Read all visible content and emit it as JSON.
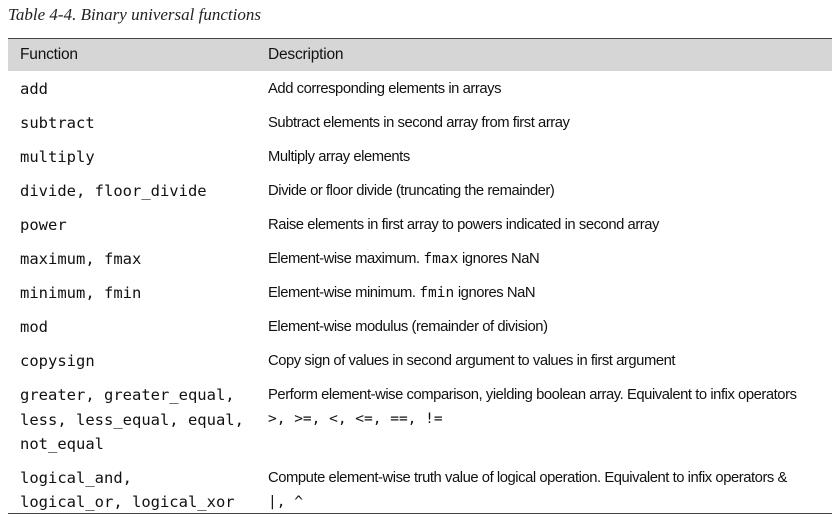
{
  "caption": "Table 4-4. Binary universal functions",
  "header": {
    "function": "Function",
    "description": "Description"
  },
  "rows": [
    {
      "function": "add",
      "description": "Add corresponding elements in arrays"
    },
    {
      "function": "subtract",
      "description": "Subtract elements in second array from first array"
    },
    {
      "function": "multiply",
      "description": "Multiply array elements"
    },
    {
      "function": "divide, floor_divide",
      "description": "Divide or floor divide (truncating the remainder)"
    },
    {
      "function": "power",
      "description": "Raise elements in first array to powers indicated in second array"
    },
    {
      "function": "maximum, fmax",
      "description_pre": "Element-wise maximum. ",
      "description_code": "fmax",
      "description_post": " ignores NaN"
    },
    {
      "function": "minimum, fmin",
      "description_pre": "Element-wise minimum. ",
      "description_code": "fmin",
      "description_post": " ignores NaN"
    },
    {
      "function": "mod",
      "description": "Element-wise modulus (remainder of division)"
    },
    {
      "function": "copysign",
      "description": "Copy sign of values in second argument to values in first argument"
    },
    {
      "function": "greater, greater_equal,\nless, less_equal, equal,\nnot_equal",
      "description": "Perform element-wise comparison, yielding boolean array. Equivalent to infix operators",
      "description_ops": ">, >=, <, <=, ==, !="
    },
    {
      "function": "logical_and,\nlogical_or, logical_xor",
      "description": "Compute element-wise truth value of logical operation. Equivalent to infix operators &",
      "description_ops": "|, ^"
    }
  ]
}
